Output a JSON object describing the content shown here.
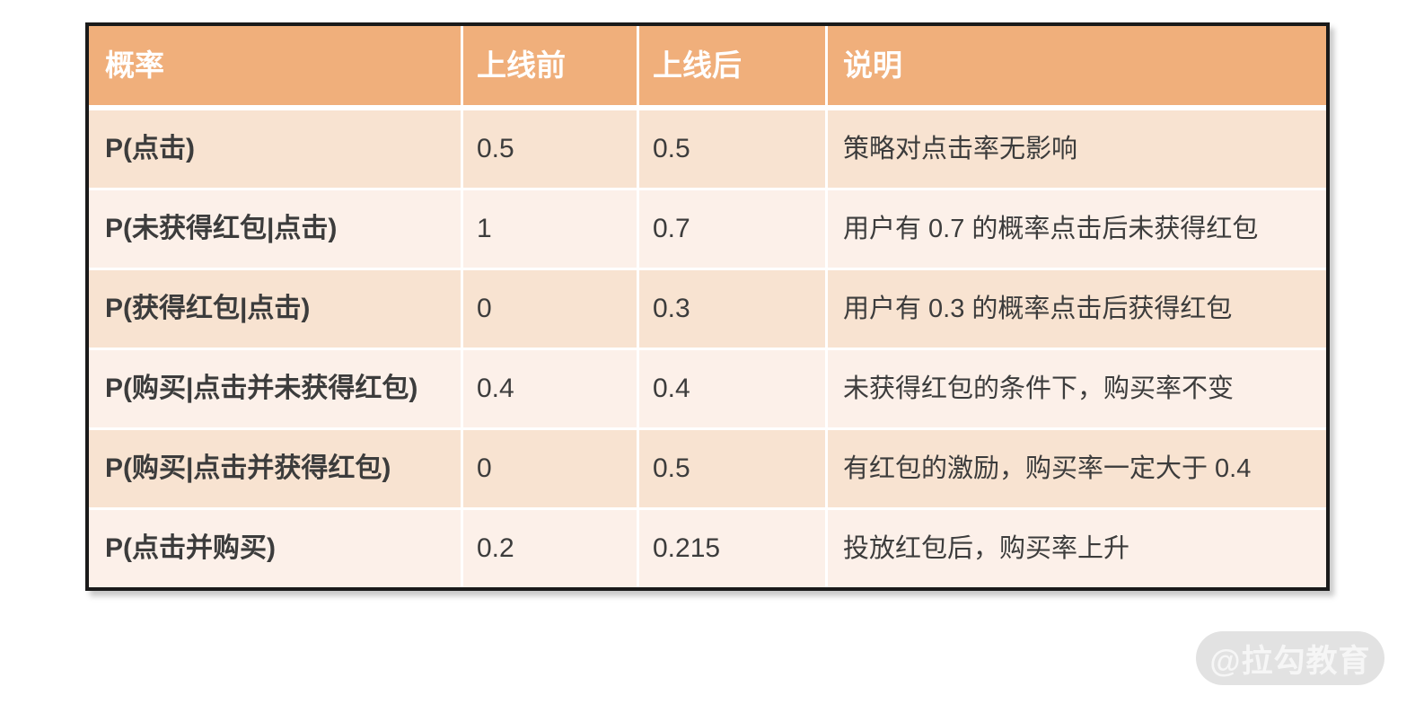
{
  "table": {
    "columns": [
      "概率",
      "上线前",
      "上线后",
      "说明"
    ],
    "rows": [
      {
        "label": "P(点击)",
        "before": "0.5",
        "after": "0.5",
        "note": "策略对点击率无影响"
      },
      {
        "label": "P(未获得红包|点击)",
        "before": "1",
        "after": "0.7",
        "note": "用户有 0.7 的概率点击后未获得红包"
      },
      {
        "label": "P(获得红包|点击)",
        "before": "0",
        "after": "0.3",
        "note": "用户有 0.3 的概率点击后获得红包"
      },
      {
        "label": "P(购买|点击并未获得红包)",
        "before": "0.4",
        "after": "0.4",
        "note": "未获得红包的条件下，购买率不变"
      },
      {
        "label": "P(购买|点击并获得红包)",
        "before": "0",
        "after": "0.5",
        "note": "有红包的激励，购买率一定大于 0.4"
      },
      {
        "label": "P(点击并购买)",
        "before": "0.2",
        "after": "0.215",
        "note": "投放红包后，购买率上升"
      }
    ]
  },
  "watermark": {
    "label": "@拉勾教育"
  },
  "colors": {
    "header_bg": "#f0af7b",
    "header_text": "#ffffff",
    "row_odd_bg": "#f8e3d1",
    "row_even_bg": "#fcf0e9",
    "body_text": "#3c3c3c",
    "table_border": "#1a1a1a",
    "separator": "#ffffff",
    "watermark_bg": "#e2e2e2",
    "watermark_text": "#f6f6f6"
  }
}
